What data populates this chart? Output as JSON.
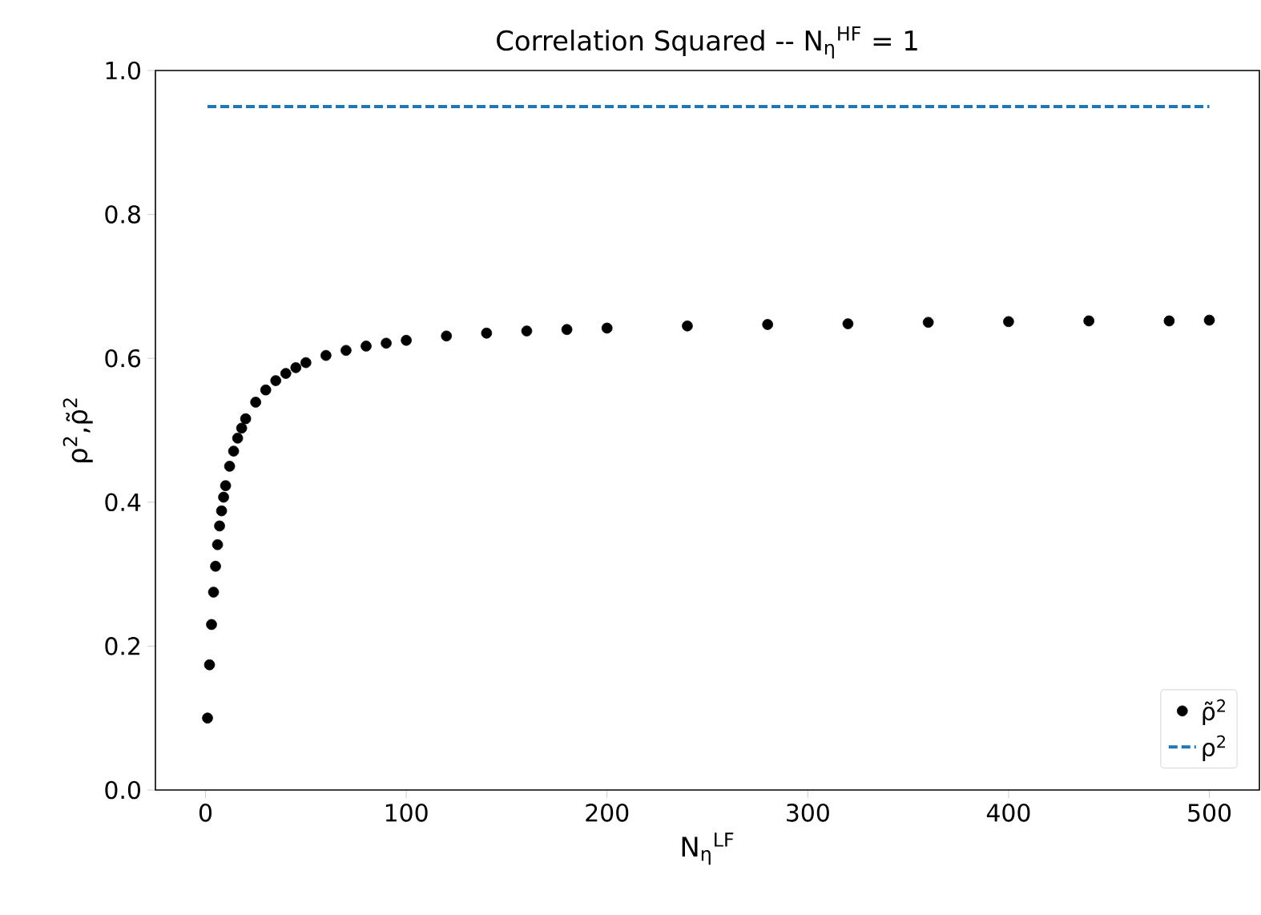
{
  "chart_data": {
    "type": "scatter",
    "title": "Correlation Squared -- N$_{η}$$^{HF}$ = 1",
    "xlabel": "N$_{η}$$^{LF}$",
    "ylabel": "ρ$^{2}$,ρ̃$^{2}$",
    "xlim": [
      -24.95,
      524.95
    ],
    "xticks": [
      0,
      100,
      200,
      300,
      400,
      500
    ],
    "ylim": [
      0,
      1
    ],
    "yticks": [
      {
        "value": 0,
        "label": "0.0"
      },
      {
        "value": 0.2,
        "label": "0.2"
      },
      {
        "value": 0.4,
        "label": "0.4"
      },
      {
        "value": 0.6,
        "label": "0.6"
      },
      {
        "value": 0.8,
        "label": "0.8"
      },
      {
        "value": 1,
        "label": "1.0"
      }
    ],
    "legend": "bottom right",
    "grid": false,
    "series": [
      {
        "name": "ρ̃$^{2}$",
        "marker": "circle",
        "color": "#000000",
        "x": [
          1,
          2,
          3,
          4,
          5,
          6,
          7,
          8,
          9,
          10,
          12,
          14,
          16,
          18,
          20,
          25,
          30,
          35,
          40,
          45,
          50,
          60,
          70,
          80,
          90,
          100,
          120,
          140,
          160,
          180,
          200,
          240,
          280,
          320,
          360,
          400,
          440,
          480,
          500
        ],
        "values": [
          0.1,
          0.174,
          0.23,
          0.275,
          0.311,
          0.341,
          0.367,
          0.388,
          0.407,
          0.423,
          0.45,
          0.471,
          0.489,
          0.503,
          0.516,
          0.539,
          0.556,
          0.569,
          0.579,
          0.587,
          0.594,
          0.604,
          0.611,
          0.617,
          0.621,
          0.625,
          0.631,
          0.635,
          0.638,
          0.64,
          0.642,
          0.645,
          0.647,
          0.648,
          0.65,
          0.651,
          0.652,
          0.652,
          0.653
        ]
      },
      {
        "name": "ρ$^{2}$",
        "type": "line",
        "line_style": "dashed",
        "marker": "none",
        "color": "#1f77b4",
        "x": [
          1,
          500
        ],
        "values": [
          0.95,
          0.95
        ]
      }
    ]
  }
}
